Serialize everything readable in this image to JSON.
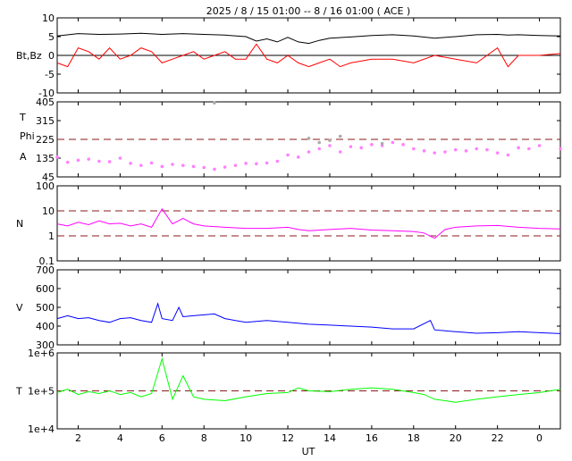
{
  "title": "2025 /  8 / 15   01:00 --  8 / 16   01:00 ( ACE )",
  "x_axis": {
    "label": "UT",
    "ticks": [
      "2",
      "4",
      "6",
      "8",
      "10",
      "12",
      "14",
      "16",
      "18",
      "20",
      "22",
      "0"
    ],
    "start_hour": 1,
    "end_hour": 25
  },
  "chart_data": [
    {
      "type": "line",
      "panel": "magnetic-field",
      "ylabel": "Bt,Bz",
      "ylim": [
        -10,
        10
      ],
      "yticks": [
        "10",
        "5",
        "0",
        "-5",
        "-10"
      ],
      "reference_lines": [
        0
      ],
      "series": [
        {
          "name": "Bt",
          "color": "#000000",
          "x": [
            1,
            2,
            3,
            4,
            5,
            6,
            7,
            8,
            9,
            10,
            10.5,
            11,
            11.5,
            12,
            12.5,
            13,
            13.5,
            14,
            15,
            16,
            17,
            18,
            19,
            20,
            21,
            22,
            22.5,
            23,
            24,
            25
          ],
          "values": [
            5.2,
            5.8,
            5.6,
            5.7,
            5.9,
            5.6,
            5.8,
            5.6,
            5.4,
            5.0,
            3.8,
            4.4,
            3.6,
            4.8,
            3.6,
            3.2,
            4.0,
            4.6,
            4.9,
            5.3,
            5.5,
            5.2,
            4.6,
            5.0,
            5.5,
            5.6,
            5.4,
            5.5,
            5.3,
            5.2
          ]
        },
        {
          "name": "Bz",
          "color": "#ff0000",
          "x": [
            1,
            1.5,
            2,
            2.5,
            3,
            3.5,
            4,
            4.5,
            5,
            5.5,
            6,
            6.5,
            7,
            7.5,
            8,
            8.5,
            9,
            9.5,
            10,
            10.5,
            11,
            11.5,
            12,
            12.5,
            13,
            13.5,
            14,
            14.5,
            15,
            16,
            17,
            18,
            19,
            20,
            21,
            22,
            22.5,
            23,
            24,
            25
          ],
          "values": [
            -2,
            -3,
            2,
            1,
            -1,
            2,
            -1,
            0,
            2,
            1,
            -2,
            -1,
            0,
            1,
            -1,
            0,
            1,
            -1,
            -1,
            3,
            -1,
            -2,
            0,
            -2,
            -3,
            -2,
            -1,
            -3,
            -2,
            -1,
            -1,
            -2,
            0,
            -1,
            -2,
            2,
            -3,
            0,
            0,
            0.5
          ]
        }
      ]
    },
    {
      "type": "scatter",
      "panel": "imf-angles",
      "ylabels": [
        "T",
        "Phi",
        "A"
      ],
      "ylim": [
        45,
        405
      ],
      "yticks": [
        "405",
        "315",
        "225",
        "135",
        "45"
      ],
      "reference_lines": [
        225
      ],
      "series": [
        {
          "name": "Phi",
          "color": "#ff80ff",
          "x": [
            1,
            1.5,
            2,
            2.5,
            3,
            3.5,
            4,
            4.5,
            5,
            5.5,
            6,
            6.5,
            7,
            7.5,
            8,
            8.5,
            9,
            9.5,
            10,
            10.5,
            11,
            11.5,
            12,
            12.5,
            13,
            13.5,
            14,
            14.5,
            15,
            15.5,
            16,
            16.5,
            17,
            17.5,
            18,
            18.5,
            19,
            19.5,
            20,
            20.5,
            21,
            21.5,
            22,
            22.5,
            23,
            23.5,
            24,
            25
          ],
          "values": [
            140,
            115,
            125,
            130,
            120,
            118,
            135,
            110,
            100,
            112,
            95,
            105,
            100,
            95,
            90,
            82,
            92,
            100,
            110,
            108,
            112,
            120,
            150,
            140,
            165,
            180,
            195,
            165,
            190,
            185,
            200,
            195,
            210,
            200,
            180,
            170,
            160,
            165,
            175,
            170,
            180,
            175,
            160,
            150,
            185,
            180,
            195,
            180
          ]
        },
        {
          "name": "Theta",
          "color": "#aaaaaa",
          "x": [
            8.5,
            13,
            13.5,
            14,
            14.5,
            16.5
          ],
          "values": [
            400,
            230,
            210,
            220,
            240,
            205
          ]
        }
      ]
    },
    {
      "type": "line",
      "panel": "density",
      "ylabel": "N",
      "log_scale": true,
      "ylim": [
        0.1,
        100
      ],
      "yticks": [
        "100",
        "10",
        "1",
        "0.1"
      ],
      "reference_lines": [
        10,
        1
      ],
      "series": [
        {
          "name": "N",
          "color": "#ff00ff",
          "x": [
            1,
            1.5,
            2,
            2.5,
            3,
            3.5,
            4,
            4.5,
            5,
            5.5,
            6,
            6.5,
            7,
            7.5,
            8,
            9,
            10,
            11,
            12,
            12.5,
            13,
            14,
            15,
            16,
            17,
            18,
            18.5,
            19,
            19.5,
            20,
            21,
            22,
            23,
            24,
            25
          ],
          "values": [
            3,
            2.5,
            3.5,
            2.8,
            4,
            3,
            3.2,
            2.5,
            3,
            2.2,
            12,
            3,
            5,
            3,
            2.5,
            2.2,
            2,
            2,
            2.2,
            1.8,
            1.6,
            1.8,
            2,
            1.7,
            1.6,
            1.5,
            1.3,
            0.8,
            1.8,
            2.2,
            2.5,
            2.6,
            2.2,
            2.0,
            1.9
          ]
        }
      ]
    },
    {
      "type": "line",
      "panel": "speed",
      "ylabel": "V",
      "ylim": [
        300,
        700
      ],
      "yticks": [
        "700",
        "600",
        "500",
        "400",
        "300"
      ],
      "reference_lines": [],
      "series": [
        {
          "name": "V",
          "color": "#0000ff",
          "x": [
            1,
            1.5,
            2,
            2.5,
            3,
            3.5,
            4,
            4.5,
            5,
            5.5,
            5.8,
            6,
            6.5,
            6.8,
            7,
            7.5,
            8,
            8.5,
            9,
            9.5,
            10,
            11,
            12,
            13,
            14,
            15,
            16,
            17,
            18,
            18.8,
            19,
            19.5,
            20,
            21,
            22,
            23,
            24,
            25
          ],
          "values": [
            440,
            455,
            440,
            445,
            430,
            420,
            440,
            445,
            430,
            420,
            520,
            440,
            430,
            500,
            450,
            455,
            460,
            465,
            440,
            430,
            420,
            430,
            420,
            410,
            405,
            400,
            395,
            385,
            385,
            430,
            380,
            375,
            370,
            362,
            365,
            370,
            365,
            360
          ]
        }
      ]
    },
    {
      "type": "line",
      "panel": "temperature",
      "ylabel": "T",
      "log_scale": true,
      "ylim": [
        10000,
        1000000
      ],
      "yticks": [
        "1e+6",
        "1e+5",
        "1e+4"
      ],
      "reference_lines": [
        100000
      ],
      "series": [
        {
          "name": "T",
          "color": "#00ff00",
          "x": [
            1,
            1.5,
            2,
            2.5,
            3,
            3.5,
            4,
            4.5,
            5,
            5.5,
            6,
            6.5,
            7,
            7.5,
            8,
            9,
            10,
            11,
            12,
            12.5,
            13,
            14,
            15,
            16,
            17,
            18,
            18.5,
            19,
            19.5,
            20,
            21,
            22,
            23,
            24,
            25
          ],
          "values": [
            90000,
            110000,
            80000,
            95000,
            85000,
            100000,
            80000,
            90000,
            70000,
            85000,
            700000,
            60000,
            250000,
            70000,
            60000,
            55000,
            70000,
            85000,
            90000,
            120000,
            100000,
            95000,
            110000,
            120000,
            110000,
            90000,
            80000,
            60000,
            55000,
            50000,
            60000,
            70000,
            80000,
            90000,
            110000
          ]
        }
      ]
    }
  ]
}
